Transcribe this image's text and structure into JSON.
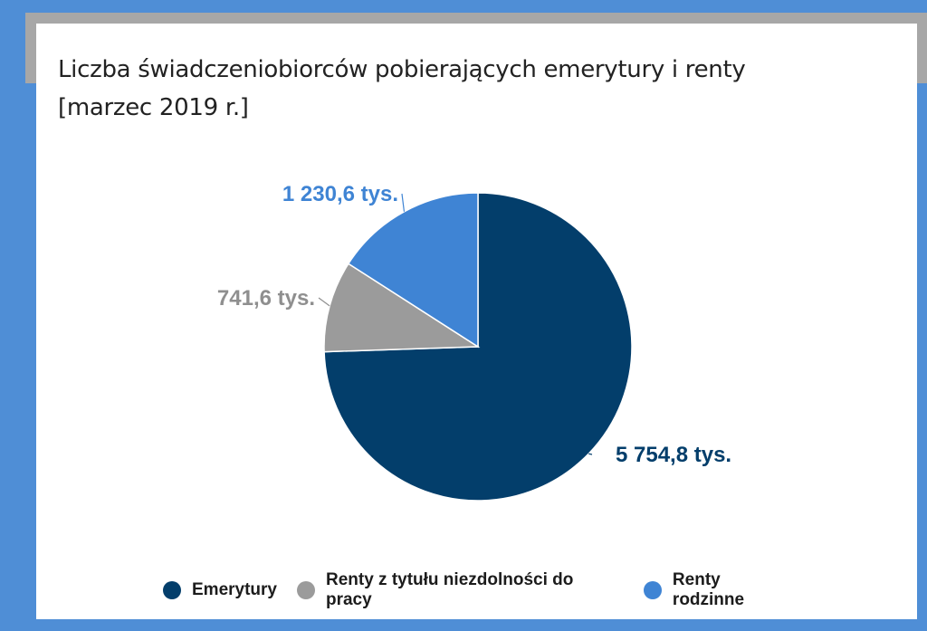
{
  "chart_data": {
    "type": "pie",
    "title_line1": "Liczba świadczeniobiorców pobierających emerytury i renty",
    "title_line2": "[marzec 2019 r.]",
    "slices": [
      {
        "name": "Emerytury",
        "value": 5754.8,
        "label": "5 754,8 tys.",
        "color": "#033e6b"
      },
      {
        "name": "Renty z tytułu niezdolności do pracy",
        "value": 741.6,
        "label": "741,6 tys.",
        "color": "#9b9b9b"
      },
      {
        "name": "Renty rodzinne",
        "value": 1230.6,
        "label": "1 230,6 tys.",
        "color": "#3f84d4"
      }
    ],
    "legend_position": "bottom"
  }
}
